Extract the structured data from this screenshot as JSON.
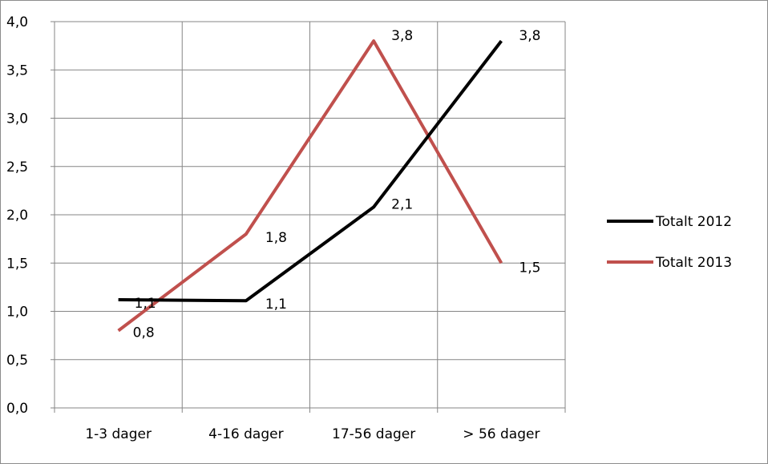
{
  "chart_data": {
    "type": "line",
    "title": "",
    "xlabel": "",
    "ylabel": "",
    "categories": [
      "1-3 dager",
      "4-16 dager",
      "17-56 dager",
      "> 56 dager"
    ],
    "ylim": [
      0,
      4
    ],
    "yticks": [
      "0,0",
      "0,5",
      "1,0",
      "1,5",
      "2,0",
      "2,5",
      "3,0",
      "3,5",
      "4,0"
    ],
    "grid": true,
    "legend_position": "right",
    "series": [
      {
        "name": "Totalt 2012",
        "color": "#000000",
        "values": [
          1.12,
          1.11,
          2.08,
          3.8
        ],
        "labels": [
          "1,1",
          "1,1",
          "2,1",
          "3,8"
        ]
      },
      {
        "name": "Totalt 2013",
        "color": "#c0504d",
        "values": [
          0.8,
          1.8,
          3.8,
          1.5
        ],
        "labels": [
          "0,8",
          "1,8",
          "3,8",
          "1,5"
        ]
      }
    ]
  }
}
